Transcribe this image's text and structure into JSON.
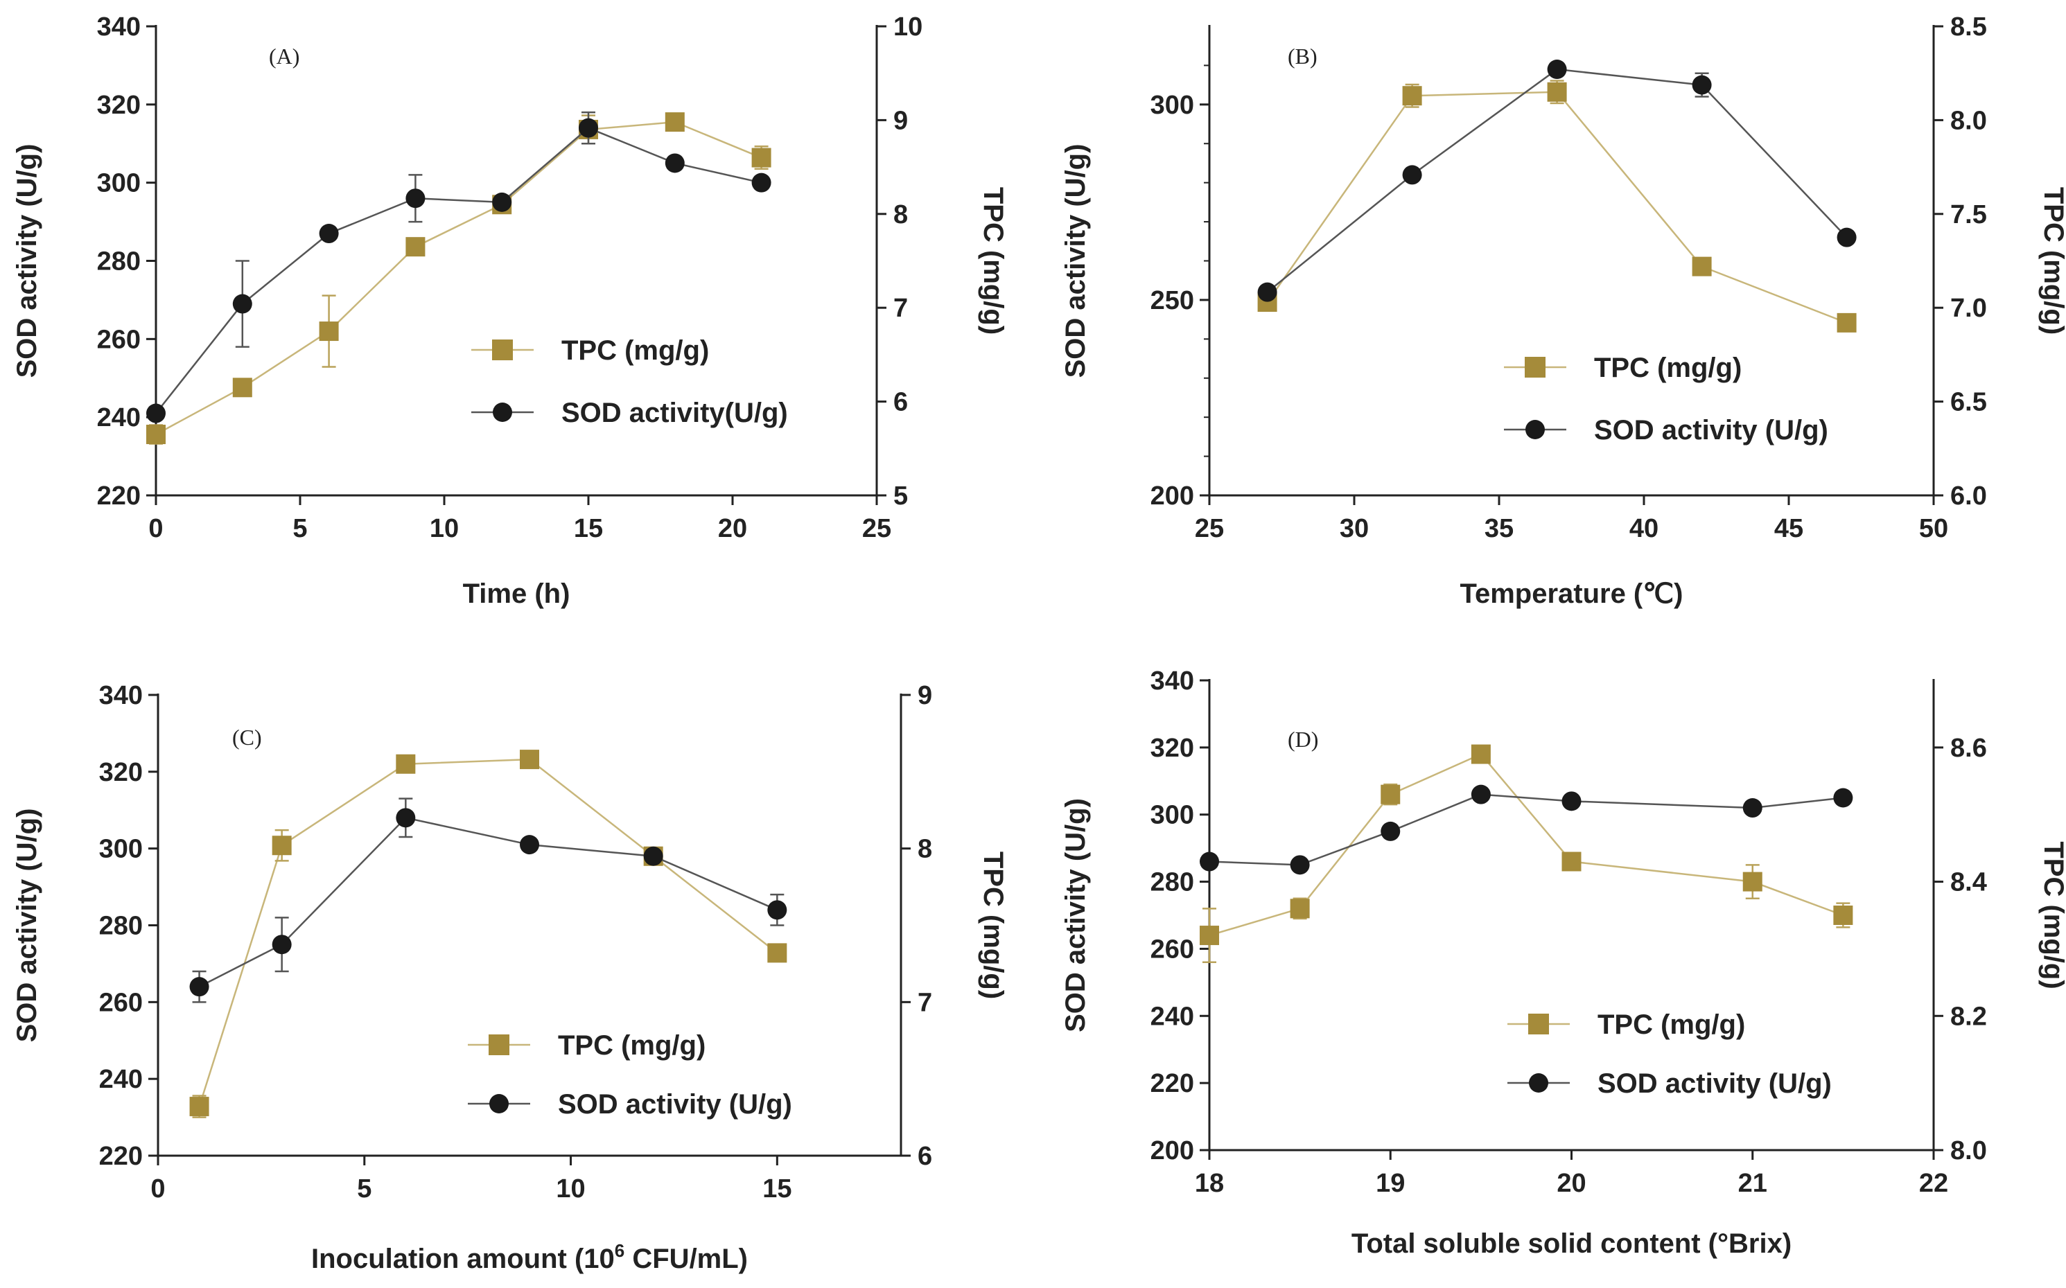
{
  "colors": {
    "tpc": "#A58B3A",
    "sod": "#1a1a1a",
    "axis": "#222222"
  },
  "chart_data": [
    {
      "type": "line",
      "panel_label": "(A)",
      "xlabel": "Time  (h)",
      "ylabel": "SOD activity (U/g)",
      "y2label": "TPC  (mg/g)",
      "xlim": [
        0,
        25
      ],
      "xticks": [
        0,
        5,
        10,
        15,
        20,
        25
      ],
      "ylim": [
        220,
        340
      ],
      "yticks": [
        220,
        240,
        260,
        280,
        300,
        320,
        340
      ],
      "y2lim": [
        5,
        10
      ],
      "y2ticks": [
        5,
        6,
        7,
        8,
        9,
        10
      ],
      "legend_position": "center-right",
      "series": [
        {
          "name": "TPC (mg/g)",
          "axis": "right",
          "marker": "square",
          "x": [
            0,
            3,
            6,
            9,
            12,
            15,
            18,
            21
          ],
          "y": [
            5.65,
            6.15,
            6.75,
            7.65,
            8.1,
            8.9,
            8.98,
            8.6
          ],
          "err": [
            0.1,
            0.05,
            0.38,
            0.05,
            0.05,
            0.15,
            0.05,
            0.12
          ]
        },
        {
          "name": "SOD activity(U/g)",
          "axis": "left",
          "marker": "circle",
          "x": [
            0,
            3,
            6,
            9,
            12,
            15,
            18,
            21
          ],
          "y": [
            241,
            269,
            287,
            296,
            295,
            314,
            305,
            300
          ],
          "err": [
            1.5,
            11,
            1,
            6,
            1,
            4,
            1.5,
            1
          ]
        }
      ]
    },
    {
      "type": "line",
      "panel_label": "(B)",
      "xlabel": "Temperature (℃)",
      "ylabel": "SOD activity (U/g)",
      "y2label": "TPC  (mg/g)",
      "xlim": [
        25,
        50
      ],
      "xticks": [
        25,
        30,
        35,
        40,
        45,
        50
      ],
      "ylim": [
        200,
        320
      ],
      "yticks": [
        200,
        250,
        300
      ],
      "y2lim": [
        6.0,
        8.5
      ],
      "y2ticks": [
        "6.0",
        "6.5",
        "7.0",
        "7.5",
        "8.0",
        "8.5"
      ],
      "legend_position": "bottom-right",
      "series": [
        {
          "name": "TPC (mg/g)",
          "axis": "right",
          "marker": "square",
          "x": [
            27,
            32,
            37,
            42,
            47
          ],
          "y": [
            7.03,
            8.13,
            8.15,
            7.22,
            6.92
          ],
          "err": [
            0.03,
            0.06,
            0.06,
            0.03,
            0.03
          ]
        },
        {
          "name": "SOD activity (U/g)",
          "axis": "left",
          "marker": "circle",
          "x": [
            27,
            32,
            37,
            42,
            47
          ],
          "y": [
            252,
            282,
            309,
            305,
            266
          ],
          "err": [
            1,
            1,
            1.5,
            3,
            1
          ]
        }
      ]
    },
    {
      "type": "line",
      "panel_label": "(C)",
      "xlabel": "Inoculation amount  (10",
      "xlabel_sup": "6",
      "xlabel_tail": " CFU/mL)",
      "ylabel": "SOD activity (U/g)",
      "y2label": "TPC  (mg/g)",
      "xlim": [
        0,
        18
      ],
      "xticks": [
        0,
        5,
        10,
        15
      ],
      "ylim": [
        220,
        340
      ],
      "yticks": [
        220,
        240,
        260,
        280,
        300,
        320,
        340
      ],
      "y2lim": [
        6,
        9
      ],
      "y2ticks": [
        6,
        7,
        8,
        9
      ],
      "legend_position": "bottom-right",
      "series": [
        {
          "name": "TPC (mg/g)",
          "axis": "right",
          "marker": "square",
          "x": [
            1,
            3,
            6,
            9,
            12,
            15
          ],
          "y": [
            6.32,
            8.02,
            8.55,
            8.58,
            7.95,
            7.32
          ],
          "err": [
            0.07,
            0.1,
            0.03,
            0.02,
            0.03,
            0.03
          ]
        },
        {
          "name": "SOD activity (U/g)",
          "axis": "left",
          "marker": "circle",
          "x": [
            1,
            3,
            6,
            9,
            12,
            15
          ],
          "y": [
            264,
            275,
            308,
            301,
            298,
            284
          ],
          "err": [
            4,
            7,
            5,
            1,
            1.5,
            4
          ]
        }
      ]
    },
    {
      "type": "line",
      "panel_label": "(D)",
      "xlabel": "Total soluble solid content  (°Brix)",
      "ylabel": "SOD activity (U/g)",
      "y2label": "TPC  (mg/g)",
      "xlim": [
        18,
        22
      ],
      "xticks": [
        18,
        19,
        20,
        21,
        22
      ],
      "ylim": [
        200,
        340
      ],
      "yticks": [
        200,
        220,
        240,
        260,
        280,
        300,
        320,
        340
      ],
      "y2lim": [
        8.0,
        8.7
      ],
      "y2ticks": [
        "8.0",
        "8.2",
        "8.4",
        "8.6"
      ],
      "legend_position": "bottom-right",
      "series": [
        {
          "name": "TPC (mg/g)",
          "axis": "right",
          "marker": "square",
          "x": [
            18,
            18.5,
            19,
            19.5,
            20,
            21,
            21.5
          ],
          "y": [
            8.32,
            8.36,
            8.53,
            8.59,
            8.43,
            8.4,
            8.35
          ],
          "err": [
            0.04,
            0.015,
            0.015,
            0.007,
            0.007,
            0.025,
            0.018
          ]
        },
        {
          "name": "SOD activity (U/g)",
          "axis": "left",
          "marker": "circle",
          "x": [
            18,
            18.5,
            19,
            19.5,
            20,
            21,
            21.5
          ],
          "y": [
            286,
            285,
            295,
            306,
            304,
            302,
            305
          ],
          "err": [
            1,
            1,
            1,
            1,
            1,
            1,
            1
          ]
        }
      ]
    }
  ]
}
